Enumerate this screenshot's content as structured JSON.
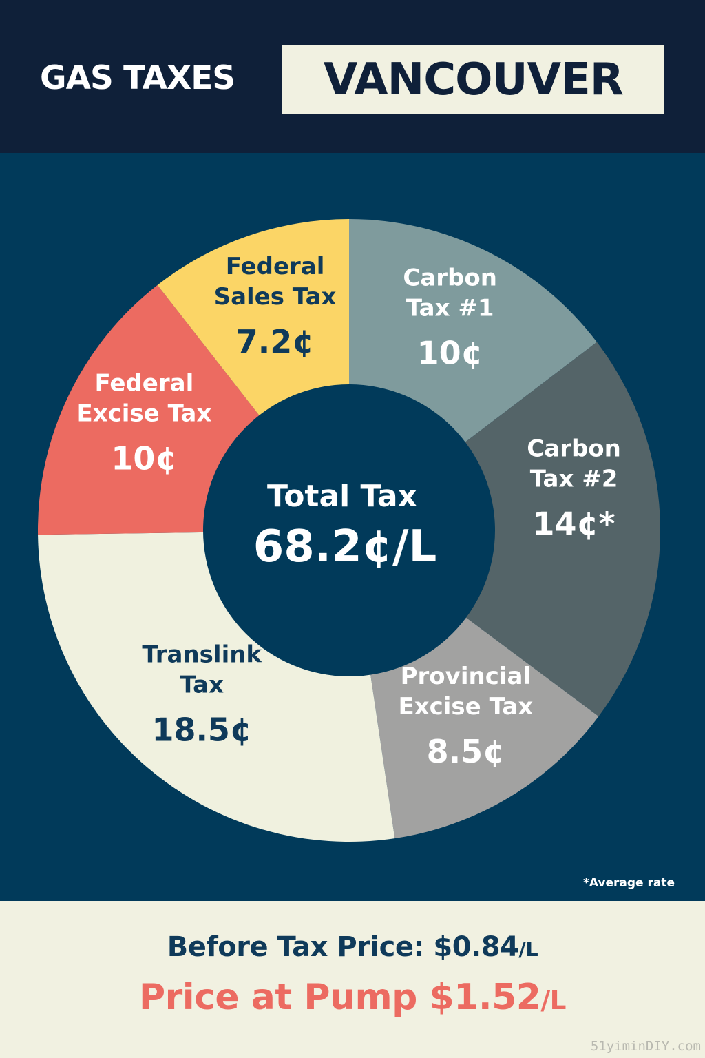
{
  "header": {
    "left_title": "GAS TAXES",
    "city": "VANCOUVER"
  },
  "chart_data": {
    "type": "pie",
    "variant": "donut",
    "slices": [
      {
        "label_lines": [
          "Carbon",
          "Tax #1"
        ],
        "value": 10,
        "display": "10¢",
        "color": "#7f9b9d",
        "text_color": "#ffffff"
      },
      {
        "label_lines": [
          "Carbon",
          "Tax #2"
        ],
        "value": 14,
        "display": "14¢*",
        "color": "#546468",
        "text_color": "#ffffff"
      },
      {
        "label_lines": [
          "Provincial",
          "Excise Tax"
        ],
        "value": 8.5,
        "display": "8.5¢",
        "color": "#a2a2a1",
        "text_color": "#ffffff"
      },
      {
        "label_lines": [
          "Translink",
          "Tax"
        ],
        "value": 18.5,
        "display": "18.5¢",
        "color": "#f0f1df",
        "text_color": "#0f3a5a"
      },
      {
        "label_lines": [
          "Federal",
          "Excise Tax"
        ],
        "value": 10,
        "display": "10¢",
        "color": "#ec6b61",
        "text_color": "#ffffff"
      },
      {
        "label_lines": [
          "Federal",
          "Sales Tax"
        ],
        "value": 7.2,
        "display": "7.2¢",
        "color": "#fbd566",
        "text_color": "#0f3a5a"
      }
    ],
    "center": {
      "title": "Total Tax",
      "value": "68.2¢/L"
    },
    "footnote": "*Average rate"
  },
  "footer": {
    "before_tax_label": "Before Tax Price: $0.84",
    "before_tax_unit": "/L",
    "pump_label": "Price at Pump $1.52",
    "pump_unit": "/L"
  },
  "watermark": "51yiminDIY.com",
  "colors": {
    "header_bg": "#0f2039",
    "panel_bg": "#013a5a",
    "cream": "#f1f1e1",
    "accent_red": "#ec6b61",
    "navy_text": "#0f3a5a"
  }
}
